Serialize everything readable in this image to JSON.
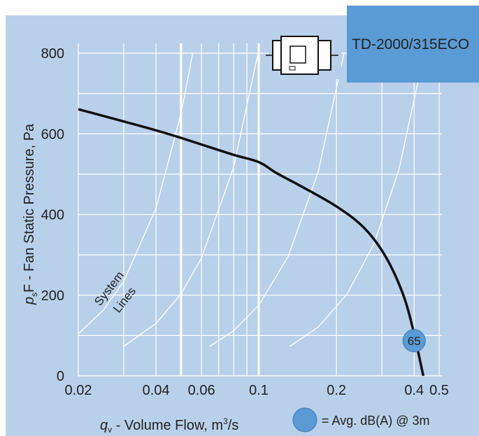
{
  "chart_data": {
    "type": "line",
    "title": "TD-2000/315ECO",
    "x_label": {
      "symbol": "q",
      "sub": "v",
      "text": " - Volume Flow, m",
      "sup": "3",
      "tail": "/s"
    },
    "y_label": {
      "symbol": "p",
      "sub": "s",
      "text": "F - Fan Static Pressure, Pa"
    },
    "xscale": "log",
    "xlim": [
      0.02,
      0.5
    ],
    "ylim": [
      0,
      800
    ],
    "xticks": [
      0.02,
      0.04,
      0.06,
      0.1,
      0.2,
      0.4,
      0.5
    ],
    "yticks": [
      0,
      200,
      400,
      600,
      800
    ],
    "x_grid": [
      0.03,
      0.05,
      0.07,
      0.08,
      0.09,
      0.3
    ],
    "x_major_grid": [
      0.05,
      0.1
    ],
    "y_grid": [
      100,
      300,
      500,
      700
    ],
    "series": [
      {
        "color": "#111111",
        "x": [
          0.02,
          0.0369,
          0.05,
          0.078,
          0.1,
          0.117,
          0.146,
          0.2,
          0.255,
          0.308,
          0.36,
          0.396,
          0.434
        ],
        "values": [
          661,
          615,
          590,
          550,
          530,
          503,
          470,
          420,
          368,
          299,
          207,
          116,
          0
        ]
      }
    ],
    "system_lines": {
      "label": [
        "System",
        "Lines"
      ],
      "color": "#ffffff",
      "lines": [
        {
          "x": [
            0.02,
            0.025,
            0.03,
            0.04,
            0.05,
            0.0555
          ],
          "values": [
            104,
            163,
            234,
            416,
            650,
            800
          ]
        },
        {
          "x": [
            0.03,
            0.04,
            0.05,
            0.06,
            0.08,
            0.0994
          ],
          "values": [
            73,
            130,
            203,
            292,
            518,
            800
          ]
        },
        {
          "x": [
            0.0646,
            0.08,
            0.1,
            0.13,
            0.17,
            0.214
          ],
          "values": [
            73,
            112,
            175,
            296,
            506,
            800
          ]
        },
        {
          "x": [
            0.132,
            0.17,
            0.22,
            0.28,
            0.35,
            0.437
          ],
          "values": [
            73,
            121,
            203,
            328,
            513,
            800
          ]
        }
      ]
    },
    "marker": {
      "x": 0.4,
      "y": 87,
      "label": "65",
      "color": "#5b9bd5"
    },
    "legend": {
      "text": "= Avg. dB(A) @ 3m"
    }
  }
}
